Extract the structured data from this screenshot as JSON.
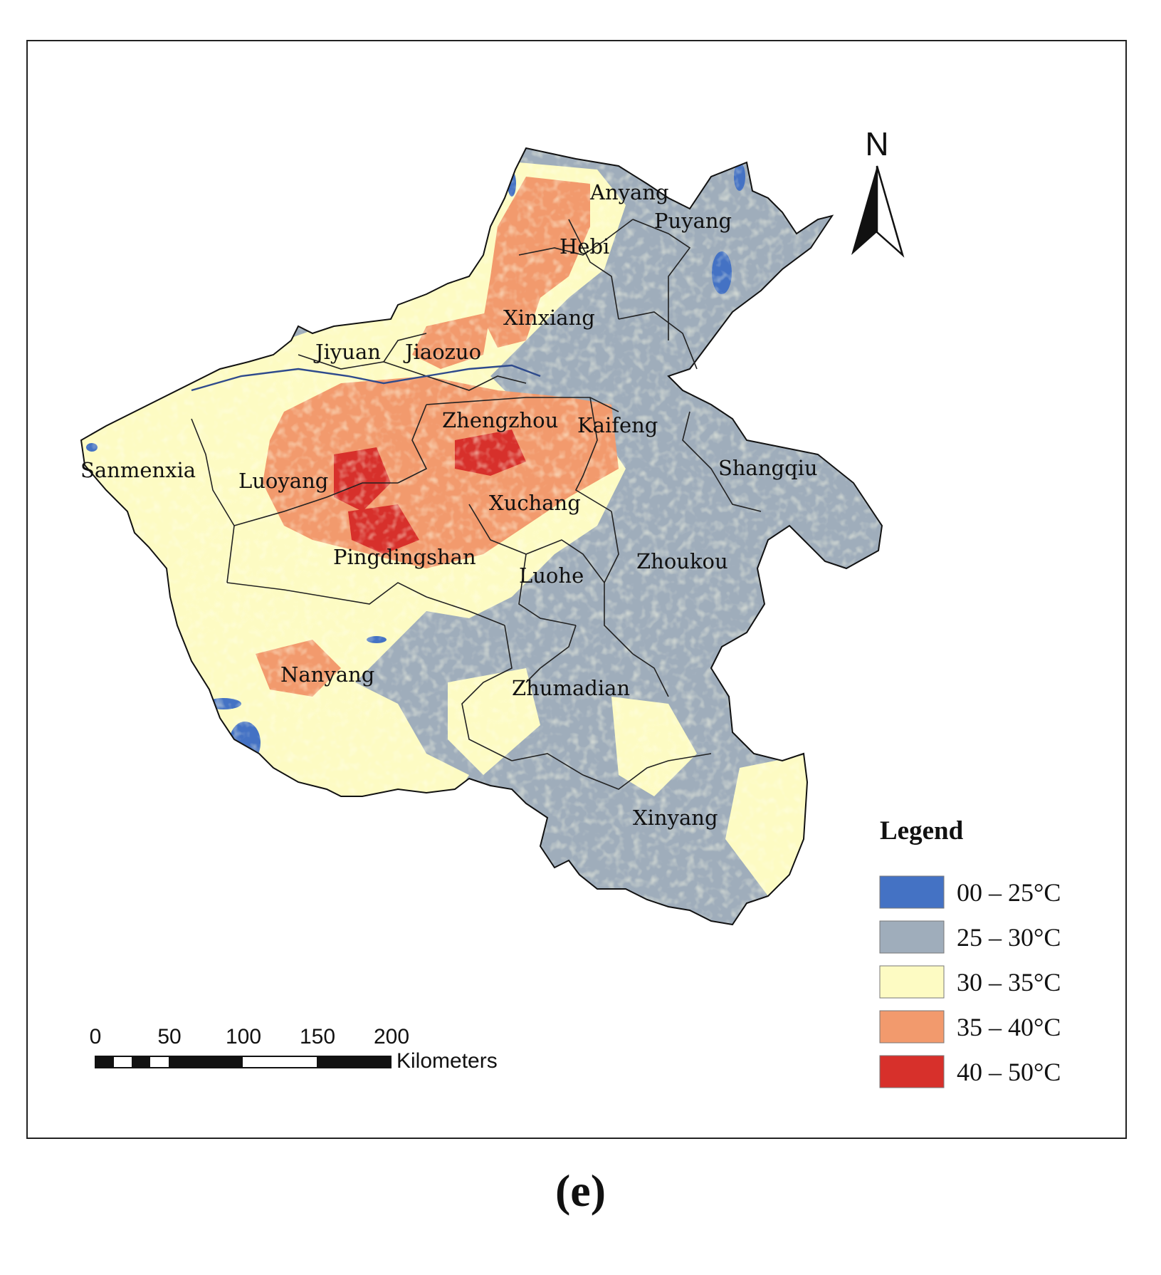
{
  "legend": {
    "title": "Legend",
    "classes": [
      {
        "label": "00 – 25°C",
        "color": "#4472c4"
      },
      {
        "label": "25 – 30°C",
        "color": "#9fadbb"
      },
      {
        "label": "30 – 35°C",
        "color": "#fdfbc3"
      },
      {
        "label": "35 – 40°C",
        "color": "#f29a6d"
      },
      {
        "label": "40 – 50°C",
        "color": "#d7302b"
      }
    ]
  },
  "cities": {
    "anyang": "Anyang",
    "puyang": "Puyang",
    "hebi": "Hebi",
    "xinxiang": "Xinxiang",
    "jiyuan": "Jiyuan",
    "jiaozuo": "Jiaozuo",
    "zhengzhou": "Zhengzhou",
    "kaifeng": "Kaifeng",
    "shangqiu": "Shangqiu",
    "sanmenxia": "Sanmenxia",
    "luoyang": "Luoyang",
    "xuchang": "Xuchang",
    "pingdingshan": "Pingdingshan",
    "luohe": "Luohe",
    "zhoukou": "Zhoukou",
    "nanyang": "Nanyang",
    "zhumadian": "Zhumadian",
    "xinyang": "Xinyang"
  },
  "north_arrow": "N",
  "scale_bar": {
    "ticks": [
      "0",
      "50",
      "100",
      "150",
      "200"
    ],
    "unit": "Kilometers"
  },
  "panel_label": "(e)"
}
